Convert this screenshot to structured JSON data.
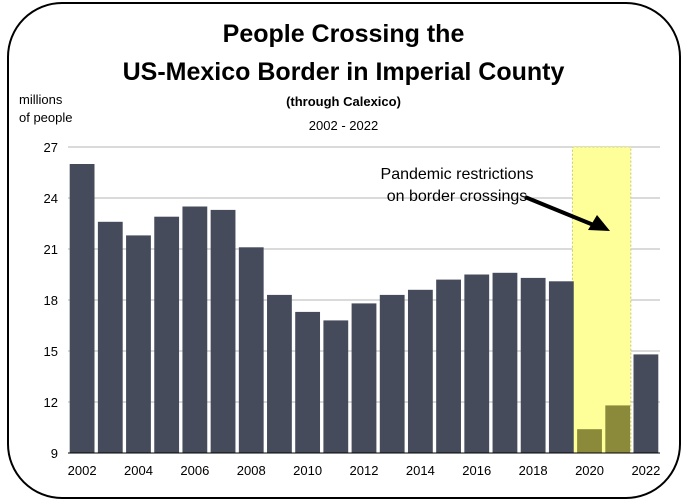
{
  "chart_data": {
    "type": "bar",
    "title": "People Crossing the",
    "title_line2": "US-Mexico Border in Imperial County",
    "subtitle": "(through Calexico)",
    "date_range": "2002 - 2022",
    "ylabel_line1": "millions",
    "ylabel_line2": "of people",
    "ylim": [
      9,
      27
    ],
    "yticks": [
      9,
      12,
      15,
      18,
      21,
      24,
      27
    ],
    "grid": true,
    "categories": [
      "2002",
      "2003",
      "2004",
      "2005",
      "2006",
      "2007",
      "2008",
      "2009",
      "2010",
      "2011",
      "2012",
      "2013",
      "2014",
      "2015",
      "2016",
      "2017",
      "2018",
      "2019",
      "2020",
      "2021",
      "2022"
    ],
    "xtick_labels": [
      "2002",
      "2004",
      "2006",
      "2008",
      "2010",
      "2012",
      "2014",
      "2016",
      "2018",
      "2020",
      "2022"
    ],
    "values": [
      26.0,
      22.6,
      21.8,
      22.9,
      23.5,
      23.3,
      21.1,
      18.3,
      17.3,
      16.8,
      17.8,
      18.3,
      18.6,
      19.2,
      19.5,
      19.6,
      19.3,
      19.1,
      10.4,
      11.8,
      14.8
    ],
    "highlight": {
      "from": "2020",
      "to": "2021",
      "color": "#ffff99"
    },
    "annotation_line1": "Pandemic restrictions",
    "annotation_line2": "on border crossings",
    "bar_color": "#454b5a",
    "highlighted_bar_color": "#8a8a3a"
  }
}
